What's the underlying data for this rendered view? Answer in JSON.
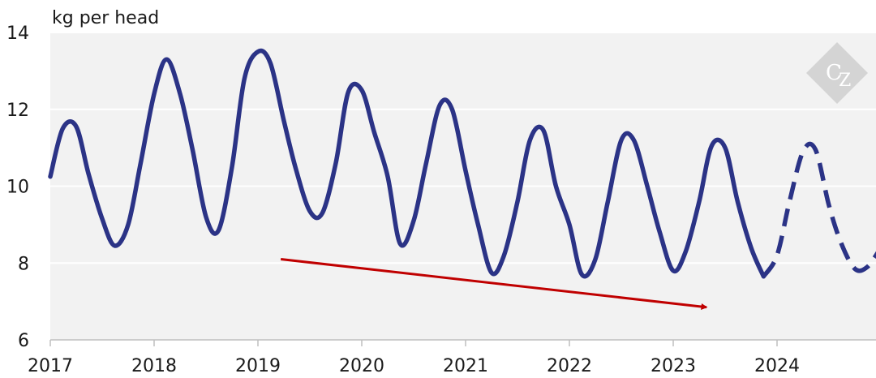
{
  "chart_data": {
    "type": "line",
    "ylabel": "kg per head",
    "ylim": [
      6,
      14
    ],
    "xlim": [
      2017,
      2025
    ],
    "yticks": [
      6,
      8,
      10,
      12,
      14
    ],
    "xticks": [
      "2017",
      "2018",
      "2019",
      "2020",
      "2021",
      "2022",
      "2023",
      "2024"
    ],
    "grid": true,
    "series": [
      {
        "style": "solid",
        "color": "#2b3386",
        "x": [
          2017.0,
          2017.12,
          2017.25,
          2017.37,
          2017.5,
          2017.62,
          2017.75,
          2017.87,
          2018.0,
          2018.12,
          2018.25,
          2018.37,
          2018.5,
          2018.62,
          2018.75,
          2018.87,
          2019.0,
          2019.12,
          2019.25,
          2019.37,
          2019.5,
          2019.62,
          2019.75,
          2019.87,
          2020.0,
          2020.12,
          2020.25,
          2020.37,
          2020.5,
          2020.62,
          2020.75,
          2020.87,
          2021.0,
          2021.12,
          2021.25,
          2021.37,
          2021.5,
          2021.62,
          2021.75,
          2021.87,
          2022.0,
          2022.12,
          2022.25,
          2022.37,
          2022.5,
          2022.62,
          2022.75,
          2022.87,
          2023.0,
          2023.12,
          2023.25,
          2023.37,
          2023.5,
          2023.62,
          2023.75,
          2023.87
        ],
        "y": [
          10.25,
          11.5,
          11.55,
          10.3,
          9.15,
          8.45,
          9.0,
          10.6,
          12.4,
          13.3,
          12.4,
          10.95,
          9.2,
          8.85,
          10.5,
          12.8,
          13.5,
          13.2,
          11.7,
          10.4,
          9.35,
          9.3,
          10.6,
          12.45,
          12.5,
          11.4,
          10.25,
          8.5,
          9.1,
          10.6,
          12.1,
          12.0,
          10.4,
          9.0,
          7.75,
          8.2,
          9.6,
          11.2,
          11.45,
          10.0,
          9.0,
          7.7,
          8.1,
          9.6,
          11.2,
          11.2,
          10.0,
          8.8,
          7.8,
          8.3,
          9.6,
          11.05,
          11.0,
          9.6,
          8.4,
          7.65
        ]
      },
      {
        "style": "dashed",
        "color": "#2b3386",
        "x": [
          2023.87,
          2024.0,
          2024.12,
          2024.25,
          2024.37,
          2024.5,
          2024.62,
          2024.75,
          2024.87,
          2025.0
        ],
        "y": [
          7.65,
          8.2,
          9.6,
          10.9,
          10.95,
          9.5,
          8.5,
          7.85,
          7.9,
          8.4
        ]
      }
    ],
    "annotations": [
      {
        "type": "arrow",
        "color": "#c00000",
        "from": [
          2019.22,
          8.1
        ],
        "to": [
          2023.32,
          6.85
        ]
      }
    ]
  },
  "logo": {
    "text": "CZ",
    "color": "#d4d4d4"
  }
}
